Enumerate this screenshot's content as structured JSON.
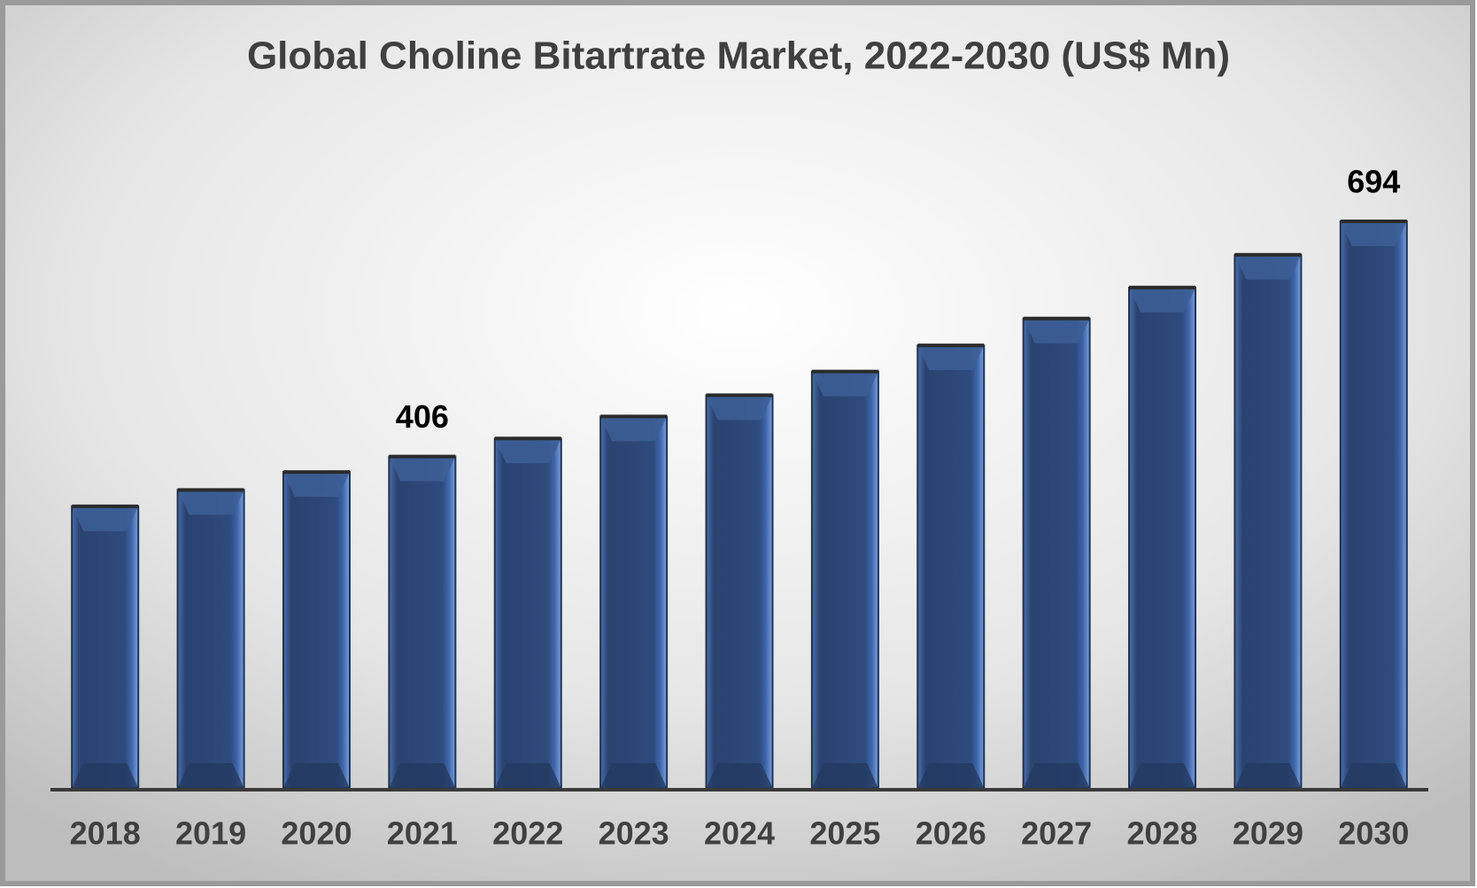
{
  "chart_data": {
    "type": "bar",
    "title": "Global Choline Bitartrate Market, 2022-2030 (US$ Mn)",
    "categories": [
      "2018",
      "2019",
      "2020",
      "2021",
      "2022",
      "2023",
      "2024",
      "2025",
      "2026",
      "2027",
      "2028",
      "2029",
      "2030"
    ],
    "values": [
      345,
      365,
      387,
      406,
      428,
      455,
      481,
      510,
      542,
      575,
      613,
      653,
      694
    ],
    "value_labels": [
      null,
      null,
      null,
      "406",
      null,
      null,
      null,
      null,
      null,
      null,
      null,
      null,
      "694"
    ],
    "color": "#2f5597"
  }
}
